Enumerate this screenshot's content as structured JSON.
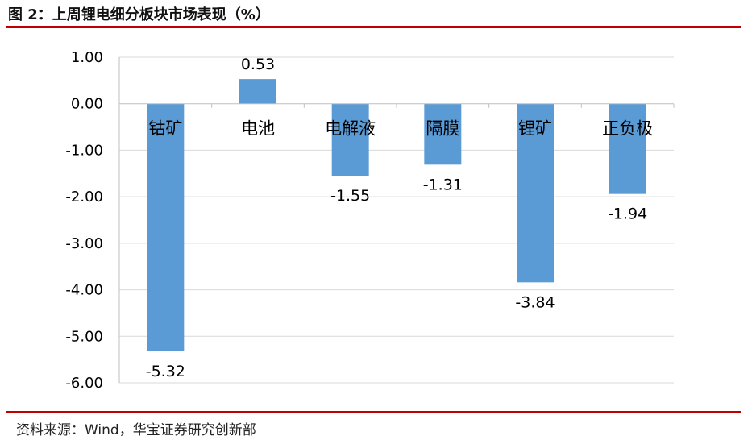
{
  "header": {
    "title": "图 2：上周锂电细分板块市场表现（%）"
  },
  "footer": {
    "source": "资料来源：Wind，华宝证券研究创新部"
  },
  "colors": {
    "bar": "#5b9bd5",
    "rule": "#c00000",
    "grid": "#d9d9d9"
  },
  "chart_data": {
    "type": "bar",
    "categories": [
      "钴矿",
      "电池",
      "电解液",
      "隔膜",
      "锂矿",
      "正负极"
    ],
    "values": [
      -5.32,
      0.53,
      -1.55,
      -1.31,
      -3.84,
      -1.94
    ],
    "value_labels": [
      "-5.32",
      "0.53",
      "-1.55",
      "-1.31",
      "-3.84",
      "-1.94"
    ],
    "ylim": [
      -6.0,
      1.0
    ],
    "yticks": [
      1.0,
      0.0,
      -1.0,
      -2.0,
      -3.0,
      -4.0,
      -5.0,
      -6.0
    ],
    "ytick_labels": [
      "1.00",
      "0.00",
      "-1.00",
      "-2.00",
      "-3.00",
      "-4.00",
      "-5.00",
      "-6.00"
    ],
    "grid": true,
    "legend": "none"
  }
}
